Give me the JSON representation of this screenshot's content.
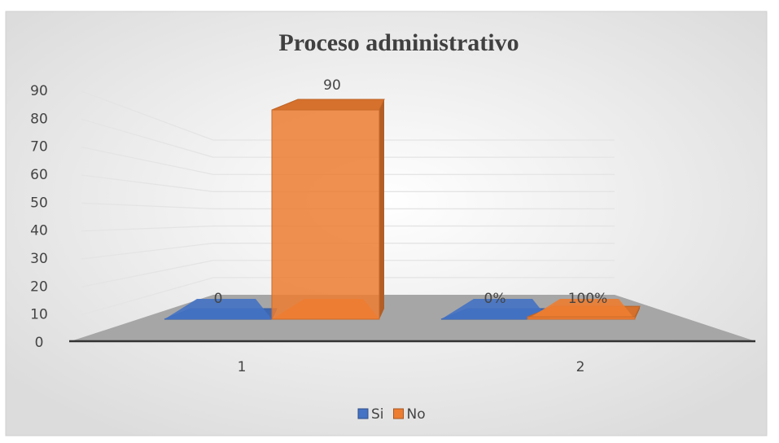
{
  "chart_data": {
    "type": "bar3d",
    "title": "Proceso administrativo",
    "categories": [
      "1",
      "2"
    ],
    "series": [
      {
        "name": "Si",
        "color": "#4472c4",
        "values": [
          0,
          0
        ],
        "value_labels": [
          "0",
          "0%"
        ]
      },
      {
        "name": "No",
        "color": "#ed7d31",
        "values": [
          90,
          1
        ],
        "value_labels": [
          "90",
          "100%"
        ]
      }
    ],
    "ylim": [
      0,
      90
    ],
    "yticks": [
      0,
      10,
      20,
      30,
      40,
      50,
      60,
      70,
      80,
      90
    ],
    "grid": true,
    "legend": "bottom"
  }
}
